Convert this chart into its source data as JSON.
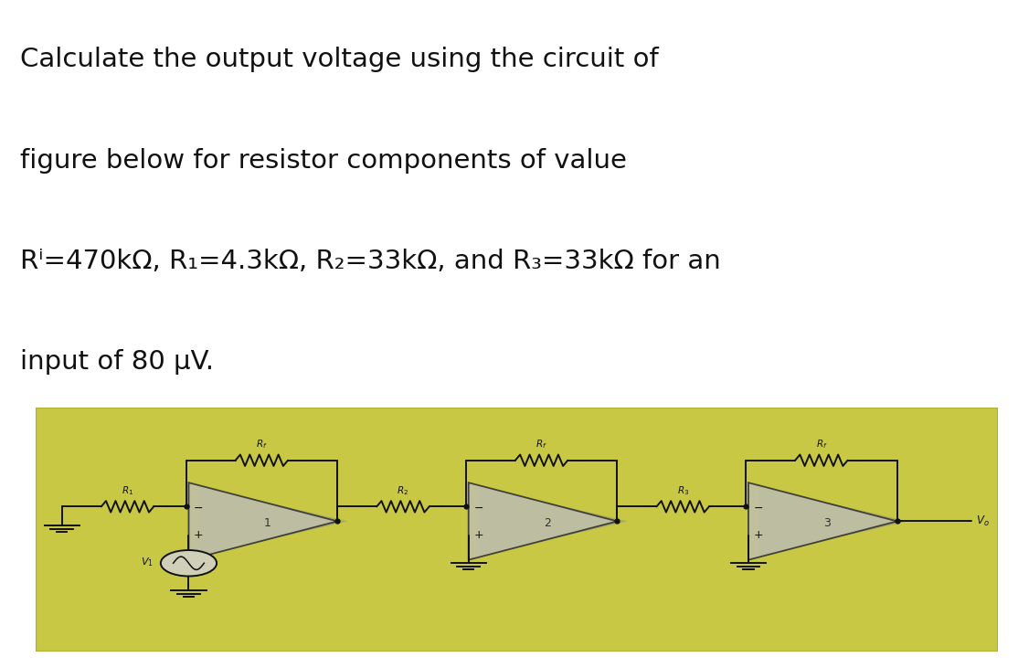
{
  "title_lines": [
    "Calculate the output voltage using the circuit of",
    "figure below for resistor components of value",
    "Rⁱ=470kΩ, R₁=4.3kΩ, R₂=33kΩ, and R₃=33kΩ for an",
    "input of 80 μV."
  ],
  "fig_bg": "#ffffff",
  "circuit_bg": "#c8c845",
  "circuit_bg_edge": "#b0b030",
  "wire_color": "#111111",
  "opamp_fill": "#b8b8a0",
  "opamp_edge": "#333333",
  "ground_color": "#111111",
  "text_color": "#111111",
  "title_fontsize": 21,
  "label_fontsize": 7.5,
  "number_fontsize": 9
}
